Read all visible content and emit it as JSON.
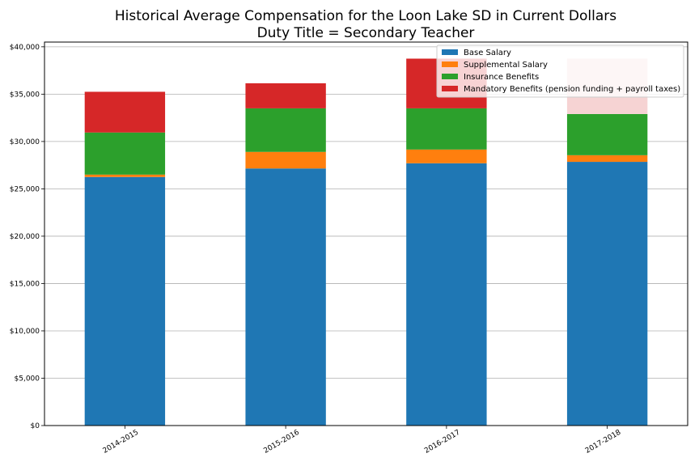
{
  "chart_data": {
    "type": "bar",
    "stacked": true,
    "title": "Historical Average Compensation for the Loon Lake SD in Current Dollars",
    "subtitle": "Duty Title = Secondary Teacher",
    "xlabel": "",
    "ylabel": "",
    "categories": [
      "2014-2015",
      "2015-2016",
      "2016-2017",
      "2017-2018"
    ],
    "series": [
      {
        "name": "Base Salary",
        "color": "#1f77b4",
        "values": [
          26250,
          27150,
          27700,
          27850
        ]
      },
      {
        "name": "Supplemental Salary",
        "color": "#ff7f0e",
        "values": [
          250,
          1750,
          1450,
          700
        ]
      },
      {
        "name": "Insurance Benefits",
        "color": "#2ca02c",
        "values": [
          4450,
          4600,
          4350,
          4350
        ]
      },
      {
        "name": "Mandatory Benefits (pension funding + payroll taxes)",
        "color": "#d62728",
        "values": [
          4300,
          2650,
          5250,
          5850
        ]
      }
    ],
    "faded": [
      {
        "category_index": 3,
        "series_index": 3,
        "color": "#f6d3d3"
      }
    ],
    "ylim": [
      0,
      40500
    ],
    "yticks": [
      0,
      5000,
      10000,
      15000,
      20000,
      25000,
      30000,
      35000,
      40000
    ],
    "ytick_labels": [
      "$0",
      "$5,000",
      "$10,000",
      "$15,000",
      "$20,000",
      "$25,000",
      "$30,000",
      "$35,000",
      "$40,000"
    ],
    "grid": "horizontal",
    "legend_position": "top-right"
  }
}
